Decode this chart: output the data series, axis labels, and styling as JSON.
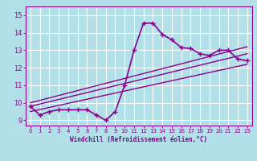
{
  "xlabel": "Windchill (Refroidissement éolien,°C)",
  "ylabel": "",
  "background_color": "#b2e0e8",
  "grid_color": "#ffffff",
  "line_color": "#8b008b",
  "x_ticks": [
    0,
    1,
    2,
    3,
    4,
    5,
    6,
    7,
    8,
    9,
    10,
    11,
    12,
    13,
    14,
    15,
    16,
    17,
    18,
    19,
    20,
    21,
    22,
    23
  ],
  "y_ticks": [
    9,
    10,
    11,
    12,
    13,
    14,
    15
  ],
  "ylim": [
    8.7,
    15.5
  ],
  "xlim": [
    -0.5,
    23.5
  ],
  "series": [
    {
      "x": [
        0,
        1,
        2,
        3,
        4,
        5,
        6,
        7,
        8,
        9,
        10,
        11,
        12,
        13,
        14,
        15,
        16,
        17,
        18,
        19,
        20,
        21,
        22,
        23
      ],
      "y": [
        9.8,
        9.3,
        9.5,
        9.6,
        9.6,
        9.6,
        9.6,
        9.3,
        9.0,
        9.5,
        11.0,
        13.0,
        14.55,
        14.55,
        13.9,
        13.6,
        13.15,
        13.1,
        12.8,
        12.7,
        13.0,
        13.0,
        12.5,
        12.4
      ],
      "marker": "+",
      "linewidth": 1.2,
      "markersize": 4
    },
    {
      "x": [
        0,
        23
      ],
      "y": [
        9.5,
        12.2
      ],
      "marker": null,
      "linewidth": 1.0,
      "markersize": 0
    },
    {
      "x": [
        0,
        23
      ],
      "y": [
        9.8,
        12.8
      ],
      "marker": null,
      "linewidth": 1.0,
      "markersize": 0
    },
    {
      "x": [
        0,
        23
      ],
      "y": [
        10.0,
        13.2
      ],
      "marker": null,
      "linewidth": 1.0,
      "markersize": 0
    }
  ]
}
